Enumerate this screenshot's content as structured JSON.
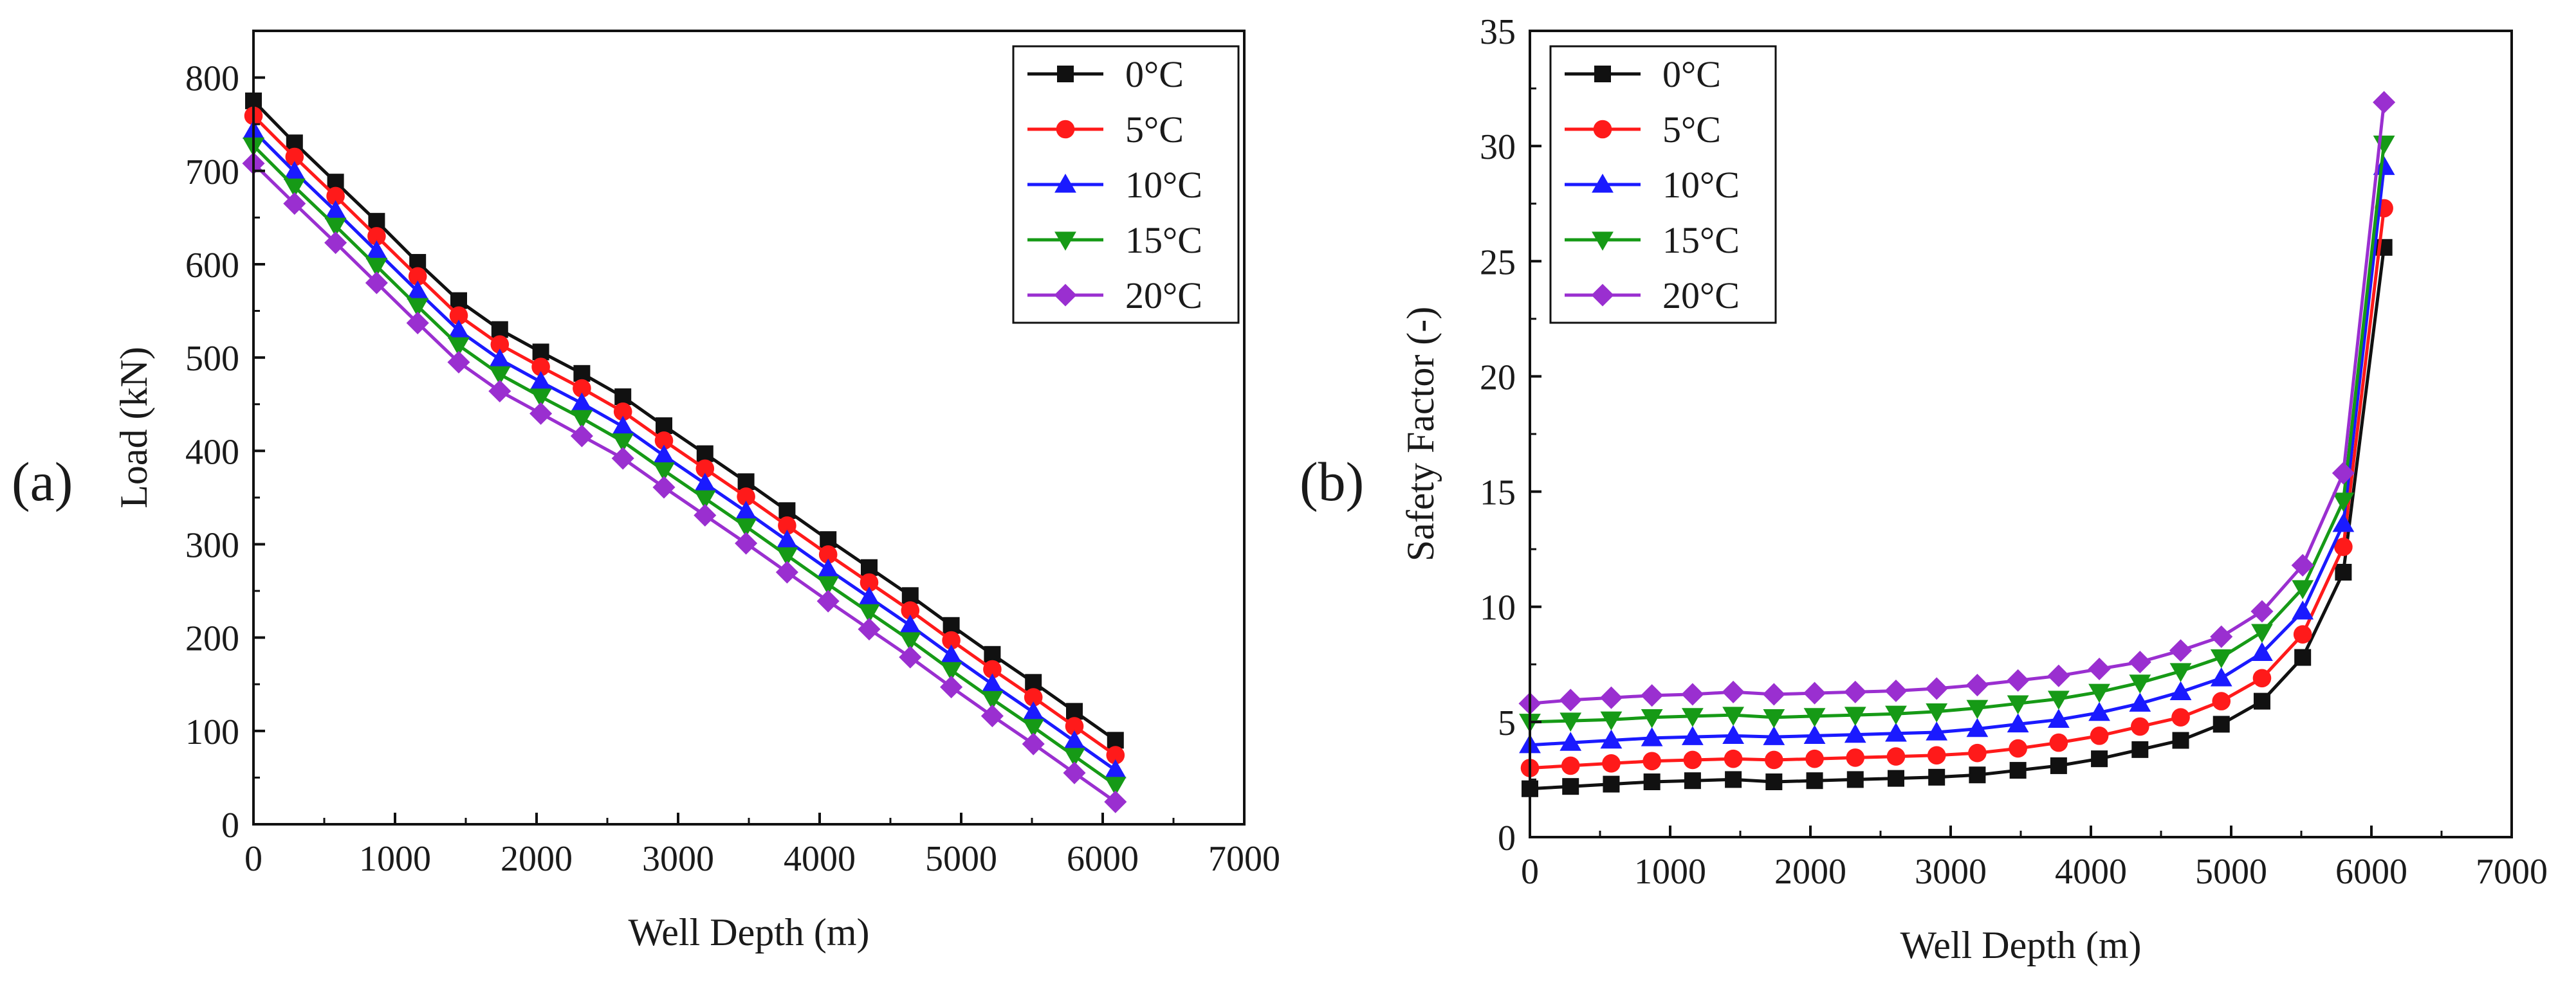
{
  "panel_labels": [
    "(a)",
    "(b)"
  ],
  "colors": {
    "0C": "#111111",
    "5C": "#ff1a1a",
    "10C": "#1a1aff",
    "15C": "#169a16",
    "20C": "#9a2fd0"
  },
  "chart_data": [
    {
      "id": "a",
      "type": "line",
      "title": "",
      "xlabel": "Well Depth (m)",
      "ylabel": "Load (kN)",
      "xlim": [
        0,
        7000
      ],
      "ylim": [
        0,
        850
      ],
      "xticks": [
        0,
        1000,
        2000,
        3000,
        4000,
        5000,
        6000,
        7000
      ],
      "yticks": [
        0,
        100,
        200,
        300,
        400,
        500,
        600,
        700,
        800
      ],
      "legend_position": "top-right",
      "x": [
        0,
        290,
        580,
        870,
        1160,
        1450,
        1740,
        2030,
        2320,
        2610,
        2900,
        3190,
        3480,
        3770,
        4060,
        4350,
        4640,
        4930,
        5220,
        5510,
        5800,
        6090
      ],
      "series": [
        {
          "name": "0°C",
          "marker": "square",
          "color": "#111111",
          "values": [
            775,
            730,
            688,
            646,
            602,
            561,
            530,
            506,
            483,
            458,
            427,
            397,
            367,
            336,
            305,
            275,
            245,
            213,
            182,
            152,
            121,
            90
          ]
        },
        {
          "name": "5°C",
          "marker": "circle",
          "color": "#ff1a1a",
          "values": [
            759,
            715,
            673,
            630,
            587,
            545,
            514,
            490,
            467,
            442,
            411,
            381,
            351,
            320,
            289,
            259,
            229,
            197,
            166,
            136,
            105,
            74
          ]
        },
        {
          "name": "10°C",
          "marker": "triangle-up",
          "color": "#1a1aff",
          "values": [
            743,
            699,
            657,
            614,
            571,
            529,
            498,
            474,
            451,
            426,
            395,
            365,
            335,
            304,
            273,
            243,
            213,
            181,
            150,
            120,
            89,
            58
          ]
        },
        {
          "name": "15°C",
          "marker": "triangle-down",
          "color": "#169a16",
          "values": [
            727,
            683,
            641,
            598,
            555,
            513,
            482,
            458,
            435,
            410,
            379,
            349,
            319,
            288,
            257,
            227,
            197,
            165,
            134,
            104,
            73,
            42
          ]
        },
        {
          "name": "20°C",
          "marker": "diamond",
          "color": "#9a2fd0",
          "values": [
            708,
            665,
            623,
            580,
            537,
            495,
            464,
            440,
            416,
            392,
            361,
            331,
            301,
            270,
            239,
            209,
            179,
            147,
            116,
            86,
            55,
            24
          ]
        }
      ]
    },
    {
      "id": "b",
      "type": "line",
      "title": "",
      "xlabel": "Well Depth (m)",
      "ylabel": "Safety Factor (-)",
      "xlim": [
        0,
        7000
      ],
      "ylim": [
        0,
        35
      ],
      "xticks": [
        0,
        1000,
        2000,
        3000,
        4000,
        5000,
        6000,
        7000
      ],
      "yticks": [
        0,
        5,
        10,
        15,
        20,
        25,
        30,
        35
      ],
      "legend_position": "top-left",
      "x": [
        0,
        290,
        580,
        870,
        1160,
        1450,
        1740,
        2030,
        2320,
        2610,
        2900,
        3190,
        3480,
        3770,
        4060,
        4350,
        4640,
        4930,
        5220,
        5510,
        5800,
        6090
      ],
      "series": [
        {
          "name": "0°C",
          "marker": "square",
          "color": "#111111",
          "values": [
            2.1,
            2.2,
            2.3,
            2.4,
            2.45,
            2.5,
            2.4,
            2.45,
            2.5,
            2.55,
            2.6,
            2.7,
            2.9,
            3.1,
            3.4,
            3.8,
            4.2,
            4.9,
            5.9,
            7.8,
            11.5,
            25.6
          ]
        },
        {
          "name": "5°C",
          "marker": "circle",
          "color": "#ff1a1a",
          "values": [
            3.0,
            3.1,
            3.2,
            3.3,
            3.35,
            3.4,
            3.35,
            3.4,
            3.45,
            3.5,
            3.55,
            3.65,
            3.85,
            4.1,
            4.4,
            4.8,
            5.2,
            5.9,
            6.9,
            8.8,
            12.6,
            27.3
          ]
        },
        {
          "name": "10°C",
          "marker": "triangle-up",
          "color": "#1a1aff",
          "values": [
            4.0,
            4.1,
            4.2,
            4.3,
            4.35,
            4.4,
            4.35,
            4.4,
            4.45,
            4.5,
            4.55,
            4.7,
            4.9,
            5.1,
            5.4,
            5.8,
            6.3,
            6.9,
            8.0,
            9.8,
            13.6,
            29.1
          ]
        },
        {
          "name": "15°C",
          "marker": "triangle-down",
          "color": "#169a16",
          "values": [
            5.0,
            5.05,
            5.1,
            5.2,
            5.25,
            5.3,
            5.2,
            5.25,
            5.3,
            5.35,
            5.45,
            5.6,
            5.8,
            6.0,
            6.3,
            6.7,
            7.2,
            7.8,
            8.9,
            10.8,
            14.6,
            30.1
          ]
        },
        {
          "name": "20°C",
          "marker": "diamond",
          "color": "#9a2fd0",
          "values": [
            5.8,
            5.95,
            6.05,
            6.15,
            6.2,
            6.3,
            6.2,
            6.25,
            6.3,
            6.35,
            6.45,
            6.6,
            6.8,
            7.0,
            7.3,
            7.6,
            8.1,
            8.7,
            9.8,
            11.8,
            15.8,
            31.9
          ]
        }
      ]
    }
  ]
}
